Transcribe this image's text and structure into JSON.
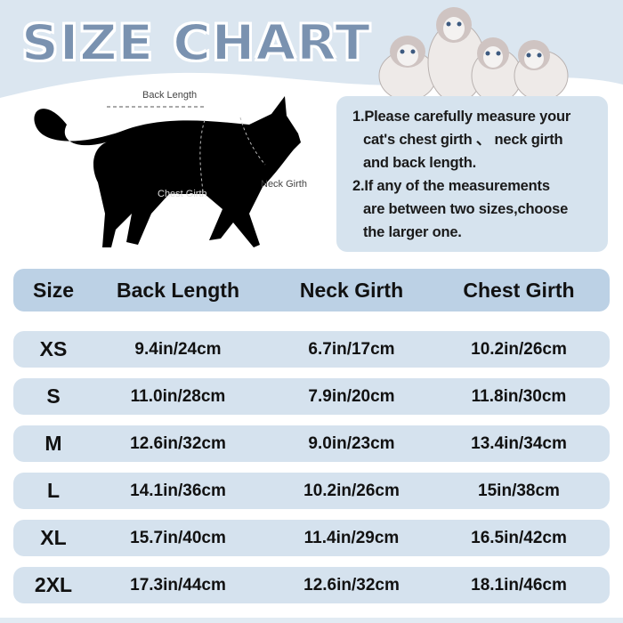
{
  "title": "SIZE CHART",
  "diagram": {
    "back_length_label": "Back Length",
    "chest_girth_label": "Chest Girth",
    "neck_girth_label": "Neck Girth"
  },
  "instructions": {
    "item1_line1": "1.Please carefully measure your",
    "item1_line2": "cat's chest girth 、 neck girth",
    "item1_line3": "and back length.",
    "item2_line1": "2.If any of the measurements",
    "item2_line2": "are between two sizes,choose",
    "item2_line3": "the larger one."
  },
  "table": {
    "headers": [
      "Size",
      "Back Length",
      "Neck Girth",
      "Chest Girth"
    ],
    "rows": [
      [
        "XS",
        "9.4in/24cm",
        "6.7in/17cm",
        "10.2in/26cm"
      ],
      [
        "S",
        "11.0in/28cm",
        "7.9in/20cm",
        "11.8in/30cm"
      ],
      [
        "M",
        "12.6in/32cm",
        "9.0in/23cm",
        "13.4in/34cm"
      ],
      [
        "L",
        "14.1in/36cm",
        "10.2in/26cm",
        "15in/38cm"
      ],
      [
        "XL",
        "15.7in/40cm",
        "11.4in/29cm",
        "16.5in/42cm"
      ],
      [
        "2XL",
        "17.3in/44cm",
        "12.6in/32cm",
        "18.1in/46cm"
      ]
    ]
  },
  "colors": {
    "header_band": "#dbe6f0",
    "title": "#7a92b0",
    "table_header": "#bcd1e5",
    "table_row": "#d5e2ee"
  }
}
